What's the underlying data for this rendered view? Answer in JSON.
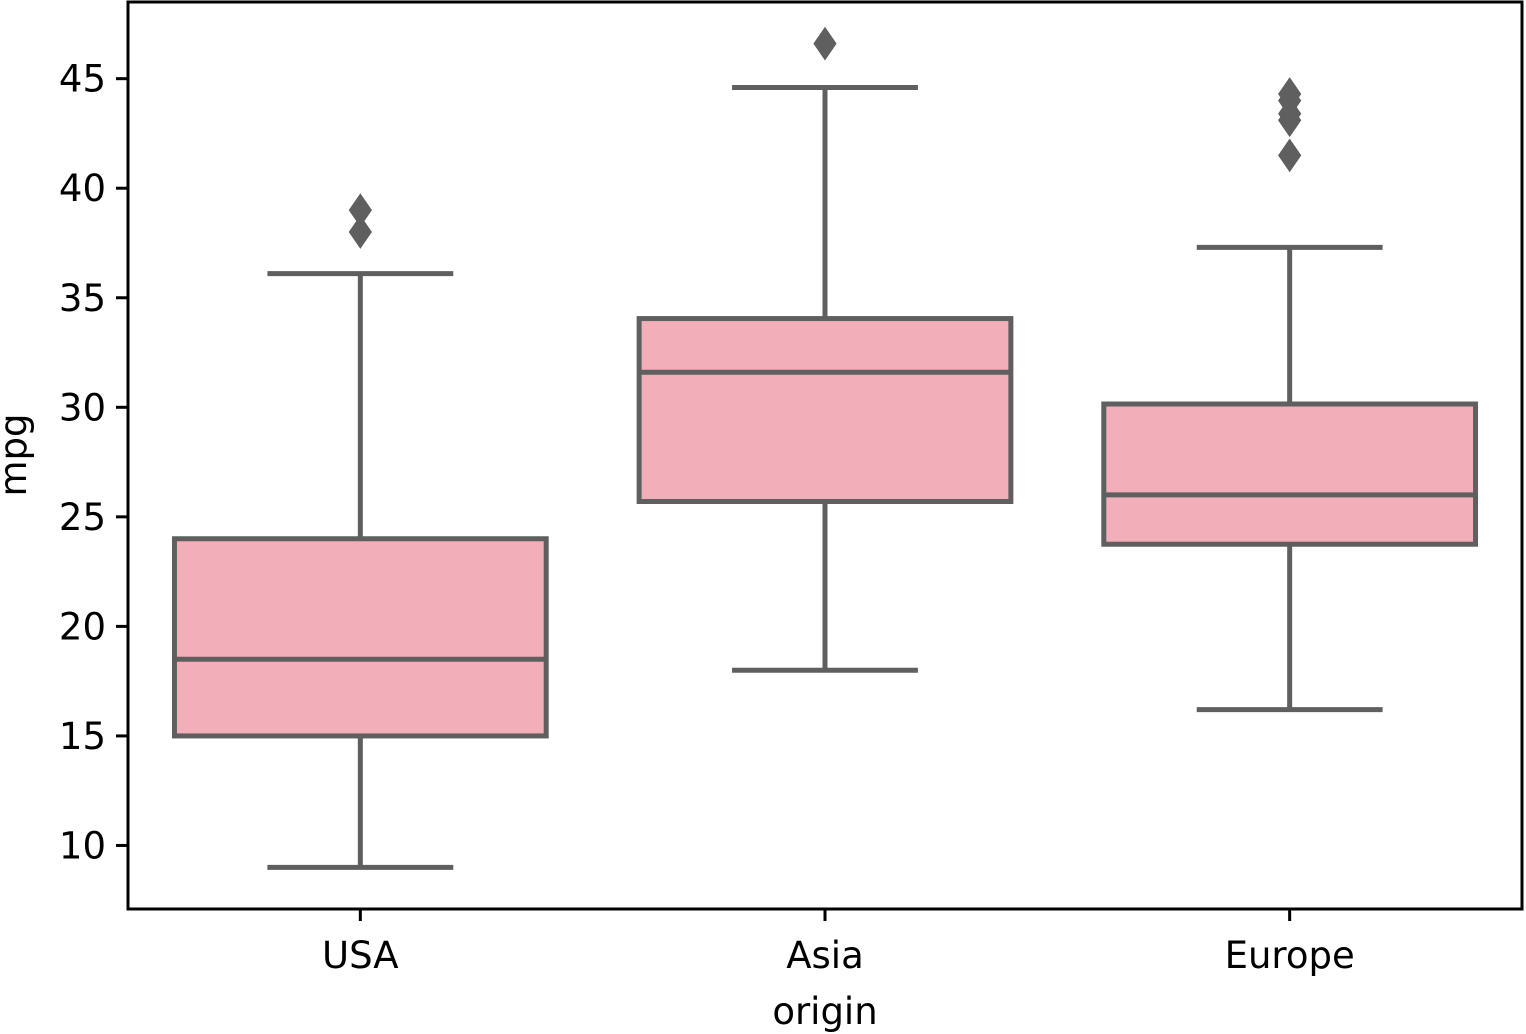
{
  "chart_data": {
    "type": "box",
    "xlabel": "origin",
    "ylabel": "mpg",
    "categories": [
      "USA",
      "Asia",
      "Europe"
    ],
    "ylim": [
      7.1,
      48.5
    ],
    "yticks": [
      10,
      15,
      20,
      25,
      30,
      35,
      40,
      45
    ],
    "grid": false,
    "legend": "none",
    "box_fill": "#f2afb9",
    "line_color": "#5f5f5f",
    "series": [
      {
        "category": "USA",
        "whisker_low": 9.0,
        "q1": 15.0,
        "median": 18.5,
        "q3": 24.0,
        "whisker_high": 36.1,
        "outliers": [
          38.0,
          39.0
        ]
      },
      {
        "category": "Asia",
        "whisker_low": 18.0,
        "q1": 25.7,
        "median": 31.6,
        "q3": 34.05,
        "whisker_high": 44.6,
        "outliers": [
          46.6
        ]
      },
      {
        "category": "Europe",
        "whisker_low": 16.2,
        "q1": 23.75,
        "median": 26.0,
        "q3": 30.15,
        "whisker_high": 37.3,
        "outliers": [
          41.5,
          43.1,
          43.4,
          44.0,
          44.3
        ]
      }
    ]
  }
}
